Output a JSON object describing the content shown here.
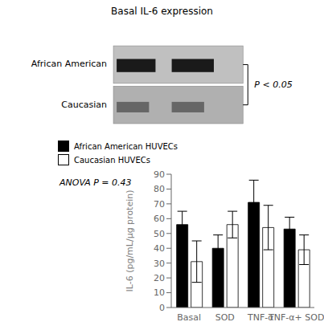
{
  "chart_data": {
    "type": "bar",
    "title": "Basal IL-6 expression",
    "annotations": [
      "African American",
      "Caucasian",
      "P < 0.05",
      "ANOVA P = 0.43"
    ],
    "categories": [
      "Basal",
      "SOD",
      "TNF-α",
      "TNF-α+ SOD"
    ],
    "series": [
      {
        "name": "African American HUVECs",
        "color": "#000000",
        "values": [
          56,
          40,
          71,
          53
        ],
        "errors": [
          9,
          9,
          15,
          8
        ]
      },
      {
        "name": "Caucasian HUVECs",
        "color": "#ffffff",
        "values": [
          31,
          56,
          54,
          39
        ],
        "errors": [
          14,
          9,
          15,
          10
        ]
      }
    ],
    "ylabel": "IL-6 (pg/mL/µg protein)",
    "ylim": [
      0,
      90
    ],
    "yticks": [
      0,
      10,
      20,
      30,
      40,
      50,
      60,
      70,
      80,
      90
    ],
    "legend": "upper left",
    "grid": false
  }
}
